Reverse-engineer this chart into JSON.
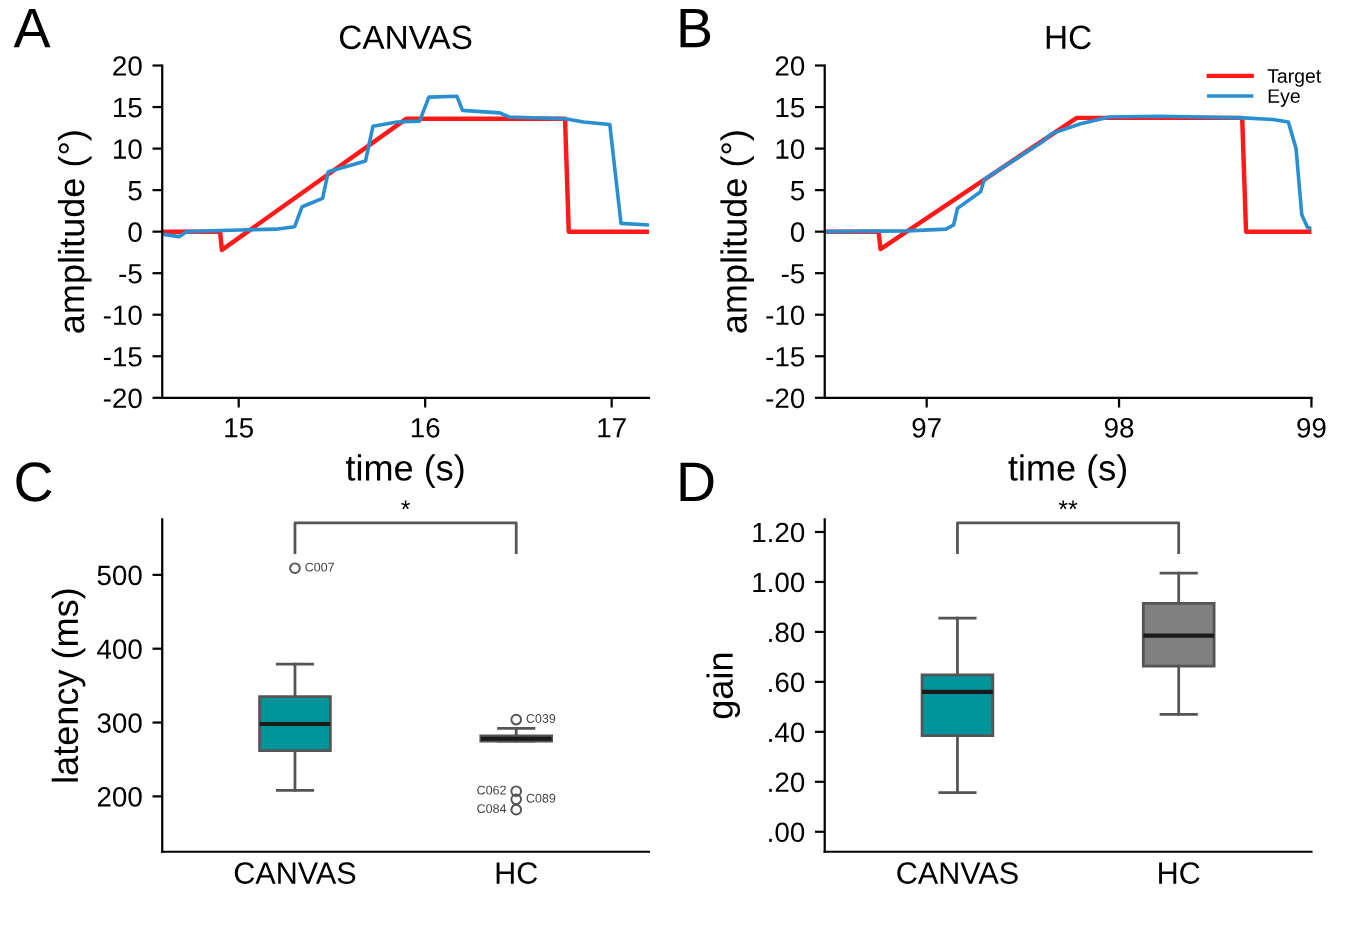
{
  "chart_data": [
    {
      "type": "line",
      "title": "CANVAS",
      "xlabel": "time (s)",
      "ylabel": "amplitude (°)",
      "annotations": [
        "A"
      ],
      "xlim": [
        14.59,
        17.2
      ],
      "xticks": [
        15,
        16,
        17
      ],
      "ylim": [
        -20,
        20
      ],
      "yticks": [
        -20,
        -15,
        -10,
        -5,
        0,
        5,
        10,
        15,
        20
      ],
      "grid": false,
      "legend": false,
      "marker": "none",
      "line_style": "solid",
      "series": [
        {
          "color": "#ff1a1a",
          "x": [
            14.59,
            14.9,
            14.91,
            15.9,
            16.75,
            16.77,
            17.2
          ],
          "values": [
            0,
            0,
            -2.2,
            13.6,
            13.6,
            0,
            0
          ]
        },
        {
          "color": "#2a8fd0",
          "x": [
            14.59,
            14.68,
            14.72,
            15.0,
            15.2,
            15.3,
            15.34,
            15.45,
            15.48,
            15.68,
            15.72,
            15.85,
            15.97,
            16.02,
            16.17,
            16.2,
            16.4,
            16.45,
            16.75,
            16.85,
            16.99,
            17.05,
            17.2
          ],
          "values": [
            -0.3,
            -0.6,
            0,
            0.2,
            0.3,
            0.6,
            3.0,
            4.0,
            7.2,
            8.5,
            12.7,
            13.2,
            13.3,
            16.2,
            16.3,
            14.6,
            14.3,
            13.8,
            13.6,
            13.2,
            12.9,
            1.0,
            0.8
          ]
        }
      ]
    },
    {
      "type": "line",
      "title": "HC",
      "xlabel": "time (s)",
      "ylabel": "amplitude (°)",
      "annotations": [
        "B"
      ],
      "xlim": [
        96.47,
        99
      ],
      "xticks": [
        97,
        98,
        99
      ],
      "ylim": [
        -20,
        20
      ],
      "yticks": [
        -20,
        -15,
        -10,
        -5,
        0,
        5,
        10,
        15,
        20
      ],
      "grid": false,
      "legend": "top right",
      "marker": "none",
      "line_style": "solid",
      "series": [
        {
          "name": "Target",
          "color": "#ff1a1a",
          "x": [
            96.47,
            96.75,
            96.76,
            97.78,
            98.64,
            98.66,
            99
          ],
          "values": [
            0,
            0,
            -2.1,
            13.7,
            13.7,
            0,
            0
          ]
        },
        {
          "name": "Eye",
          "color": "#2a8fd0",
          "x": [
            96.47,
            96.9,
            97.1,
            97.14,
            97.16,
            97.28,
            97.3,
            97.6,
            97.65,
            97.8,
            97.95,
            98.2,
            98.65,
            98.8,
            98.88,
            98.92,
            98.95,
            98.98,
            99
          ],
          "values": [
            0,
            0.1,
            0.3,
            0.8,
            2.8,
            4.8,
            6.3,
            10.8,
            11.8,
            13.0,
            13.8,
            13.9,
            13.7,
            13.5,
            13.2,
            10,
            2,
            0.5,
            0.4
          ]
        }
      ]
    },
    {
      "type": "box",
      "ylabel": "latency (ms)",
      "categories": [
        "CANVAS",
        "HC"
      ],
      "annotations": [
        "C",
        "*",
        "C007",
        "C039",
        "C062",
        "C089",
        "C084"
      ],
      "ylim": [
        125,
        575
      ],
      "yticks": [
        200,
        300,
        400,
        500
      ],
      "grid": false,
      "colors": [
        "#00959b",
        "#4a4a4a"
      ],
      "boxes": [
        {
          "low": 208,
          "q1": 262,
          "median": 298,
          "q3": 335,
          "high": 379,
          "outliers": [
            509
          ]
        },
        {
          "low": 275,
          "q1": 275,
          "median": 278,
          "q3": 282,
          "high": 292,
          "outliers": [
            304,
            207,
            196,
            182
          ]
        }
      ]
    },
    {
      "type": "box",
      "ylabel": "gain",
      "categories": [
        "CANVAS",
        "HC"
      ],
      "annotations": [
        "D",
        "**"
      ],
      "ylim": [
        -0.08,
        1.25
      ],
      "yticks": [
        {
          "value": 0,
          "label": ".00"
        },
        {
          "value": 0.2,
          "label": ".20"
        },
        {
          "value": 0.4,
          "label": ".40"
        },
        {
          "value": 0.6,
          "label": ".60"
        },
        {
          "value": 0.8,
          "label": ".80"
        },
        {
          "value": 1.0,
          "label": "1.00"
        },
        {
          "value": 1.2,
          "label": "1.20"
        }
      ],
      "grid": false,
      "colors": [
        "#00959b",
        "#808080"
      ],
      "boxes": [
        {
          "low": 0.157,
          "q1": 0.385,
          "median": 0.56,
          "q3": 0.628,
          "high": 0.855
        },
        {
          "low": 0.47,
          "q1": 0.663,
          "median": 0.785,
          "q3": 0.914,
          "high": 1.035
        }
      ]
    }
  ]
}
